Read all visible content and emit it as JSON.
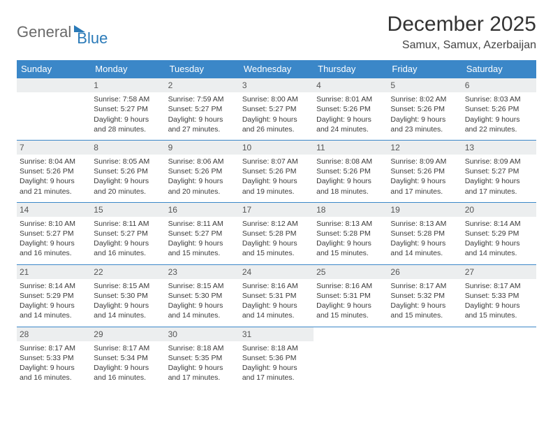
{
  "brand": {
    "part1": "General",
    "part2": "Blue"
  },
  "title": "December 2025",
  "location": "Samux, Samux, Azerbaijan",
  "colors": {
    "header_bg": "#3b87c8",
    "header_text": "#ffffff",
    "daynum_bg": "#eceeef",
    "border": "#3b87c8",
    "brand_blue": "#2a7ab8",
    "brand_gray": "#6a6a6a",
    "body_text": "#3a3a3a",
    "background": "#ffffff"
  },
  "weekdays": [
    "Sunday",
    "Monday",
    "Tuesday",
    "Wednesday",
    "Thursday",
    "Friday",
    "Saturday"
  ],
  "start_offset": 1,
  "days": [
    {
      "n": 1,
      "sunrise": "7:58 AM",
      "sunset": "5:27 PM",
      "daylight": "9 hours and 28 minutes."
    },
    {
      "n": 2,
      "sunrise": "7:59 AM",
      "sunset": "5:27 PM",
      "daylight": "9 hours and 27 minutes."
    },
    {
      "n": 3,
      "sunrise": "8:00 AM",
      "sunset": "5:27 PM",
      "daylight": "9 hours and 26 minutes."
    },
    {
      "n": 4,
      "sunrise": "8:01 AM",
      "sunset": "5:26 PM",
      "daylight": "9 hours and 24 minutes."
    },
    {
      "n": 5,
      "sunrise": "8:02 AM",
      "sunset": "5:26 PM",
      "daylight": "9 hours and 23 minutes."
    },
    {
      "n": 6,
      "sunrise": "8:03 AM",
      "sunset": "5:26 PM",
      "daylight": "9 hours and 22 minutes."
    },
    {
      "n": 7,
      "sunrise": "8:04 AM",
      "sunset": "5:26 PM",
      "daylight": "9 hours and 21 minutes."
    },
    {
      "n": 8,
      "sunrise": "8:05 AM",
      "sunset": "5:26 PM",
      "daylight": "9 hours and 20 minutes."
    },
    {
      "n": 9,
      "sunrise": "8:06 AM",
      "sunset": "5:26 PM",
      "daylight": "9 hours and 20 minutes."
    },
    {
      "n": 10,
      "sunrise": "8:07 AM",
      "sunset": "5:26 PM",
      "daylight": "9 hours and 19 minutes."
    },
    {
      "n": 11,
      "sunrise": "8:08 AM",
      "sunset": "5:26 PM",
      "daylight": "9 hours and 18 minutes."
    },
    {
      "n": 12,
      "sunrise": "8:09 AM",
      "sunset": "5:26 PM",
      "daylight": "9 hours and 17 minutes."
    },
    {
      "n": 13,
      "sunrise": "8:09 AM",
      "sunset": "5:27 PM",
      "daylight": "9 hours and 17 minutes."
    },
    {
      "n": 14,
      "sunrise": "8:10 AM",
      "sunset": "5:27 PM",
      "daylight": "9 hours and 16 minutes."
    },
    {
      "n": 15,
      "sunrise": "8:11 AM",
      "sunset": "5:27 PM",
      "daylight": "9 hours and 16 minutes."
    },
    {
      "n": 16,
      "sunrise": "8:11 AM",
      "sunset": "5:27 PM",
      "daylight": "9 hours and 15 minutes."
    },
    {
      "n": 17,
      "sunrise": "8:12 AM",
      "sunset": "5:28 PM",
      "daylight": "9 hours and 15 minutes."
    },
    {
      "n": 18,
      "sunrise": "8:13 AM",
      "sunset": "5:28 PM",
      "daylight": "9 hours and 15 minutes."
    },
    {
      "n": 19,
      "sunrise": "8:13 AM",
      "sunset": "5:28 PM",
      "daylight": "9 hours and 14 minutes."
    },
    {
      "n": 20,
      "sunrise": "8:14 AM",
      "sunset": "5:29 PM",
      "daylight": "9 hours and 14 minutes."
    },
    {
      "n": 21,
      "sunrise": "8:14 AM",
      "sunset": "5:29 PM",
      "daylight": "9 hours and 14 minutes."
    },
    {
      "n": 22,
      "sunrise": "8:15 AM",
      "sunset": "5:30 PM",
      "daylight": "9 hours and 14 minutes."
    },
    {
      "n": 23,
      "sunrise": "8:15 AM",
      "sunset": "5:30 PM",
      "daylight": "9 hours and 14 minutes."
    },
    {
      "n": 24,
      "sunrise": "8:16 AM",
      "sunset": "5:31 PM",
      "daylight": "9 hours and 14 minutes."
    },
    {
      "n": 25,
      "sunrise": "8:16 AM",
      "sunset": "5:31 PM",
      "daylight": "9 hours and 15 minutes."
    },
    {
      "n": 26,
      "sunrise": "8:17 AM",
      "sunset": "5:32 PM",
      "daylight": "9 hours and 15 minutes."
    },
    {
      "n": 27,
      "sunrise": "8:17 AM",
      "sunset": "5:33 PM",
      "daylight": "9 hours and 15 minutes."
    },
    {
      "n": 28,
      "sunrise": "8:17 AM",
      "sunset": "5:33 PM",
      "daylight": "9 hours and 16 minutes."
    },
    {
      "n": 29,
      "sunrise": "8:17 AM",
      "sunset": "5:34 PM",
      "daylight": "9 hours and 16 minutes."
    },
    {
      "n": 30,
      "sunrise": "8:18 AM",
      "sunset": "5:35 PM",
      "daylight": "9 hours and 17 minutes."
    },
    {
      "n": 31,
      "sunrise": "8:18 AM",
      "sunset": "5:36 PM",
      "daylight": "9 hours and 17 minutes."
    }
  ],
  "labels": {
    "sunrise": "Sunrise:",
    "sunset": "Sunset:",
    "daylight": "Daylight:"
  }
}
